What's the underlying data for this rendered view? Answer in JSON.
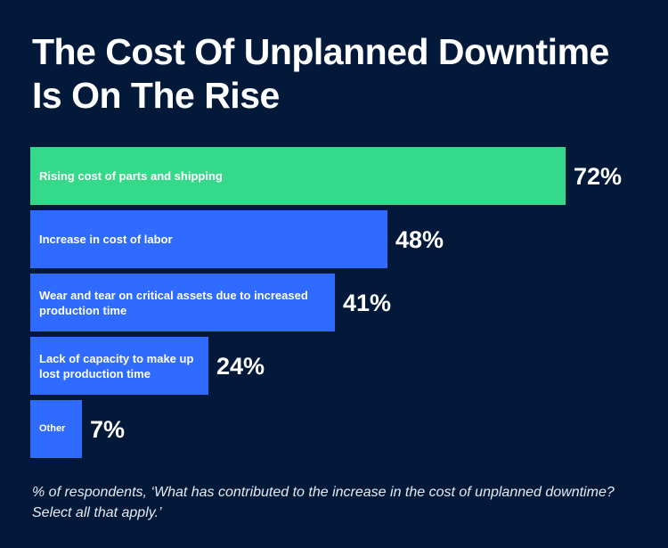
{
  "title": "The Cost Of Unplanned Downtime Is On The Rise",
  "footnote": "% of respondents, ‘What has contributed to the increase in the cost of unplanned downtime? Select all that apply.’",
  "colors": {
    "background": "#03193a",
    "highlight_bar": "#34d98a",
    "bar": "#2f6bff",
    "text": "#ffffff"
  },
  "chart_data": {
    "type": "bar",
    "orientation": "horizontal",
    "title": "The Cost Of Unplanned Downtime Is On The Rise",
    "categories": [
      "Rising cost of parts and shipping",
      "Increase in cost of labor",
      "Wear and tear on critical assets due to increased production time",
      "Lack of capacity to make up lost production time",
      "Other"
    ],
    "values": [
      72,
      48,
      41,
      24,
      7
    ],
    "value_labels": [
      "72%",
      "48%",
      "41%",
      "24%",
      "7%"
    ],
    "unit": "%",
    "xlim": [
      0,
      72
    ],
    "grid": false,
    "legend": "none"
  }
}
